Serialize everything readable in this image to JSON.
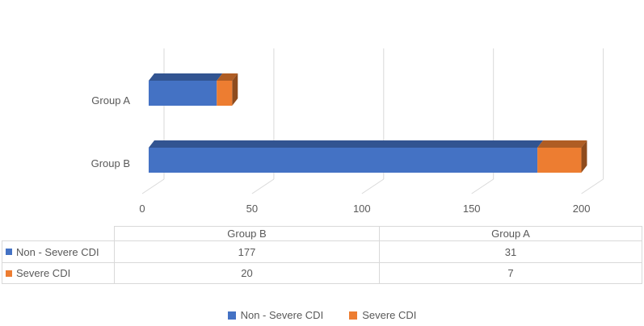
{
  "chart_data": {
    "type": "bar",
    "variant": "3d-horizontal-stacked",
    "categories": [
      "Group A",
      "Group B"
    ],
    "series": [
      {
        "name": "Non - Severe CDI",
        "color": "#4472C4",
        "values": [
          31,
          177
        ]
      },
      {
        "name": "Severe CDI",
        "color": "#ED7D31",
        "values": [
          7,
          20
        ]
      }
    ],
    "xlim": [
      0,
      200
    ],
    "xticks": [
      0,
      50,
      100,
      150,
      200
    ],
    "grid": true,
    "legend_position": "bottom",
    "axis_text_color": "#595959",
    "gridline_color": "#D9D9D9"
  },
  "table": {
    "columns": [
      "Group B",
      "Group A"
    ],
    "rows": [
      {
        "label": "Non - Severe CDI",
        "color": "#4472C4",
        "values": [
          "177",
          "31"
        ]
      },
      {
        "label": "Severe CDI",
        "color": "#ED7D31",
        "values": [
          "20",
          "7"
        ]
      }
    ]
  },
  "legend": {
    "items": [
      {
        "label": "Non - Severe CDI",
        "color": "#4472C4"
      },
      {
        "label": "Severe CDI",
        "color": "#ED7D31"
      }
    ]
  }
}
